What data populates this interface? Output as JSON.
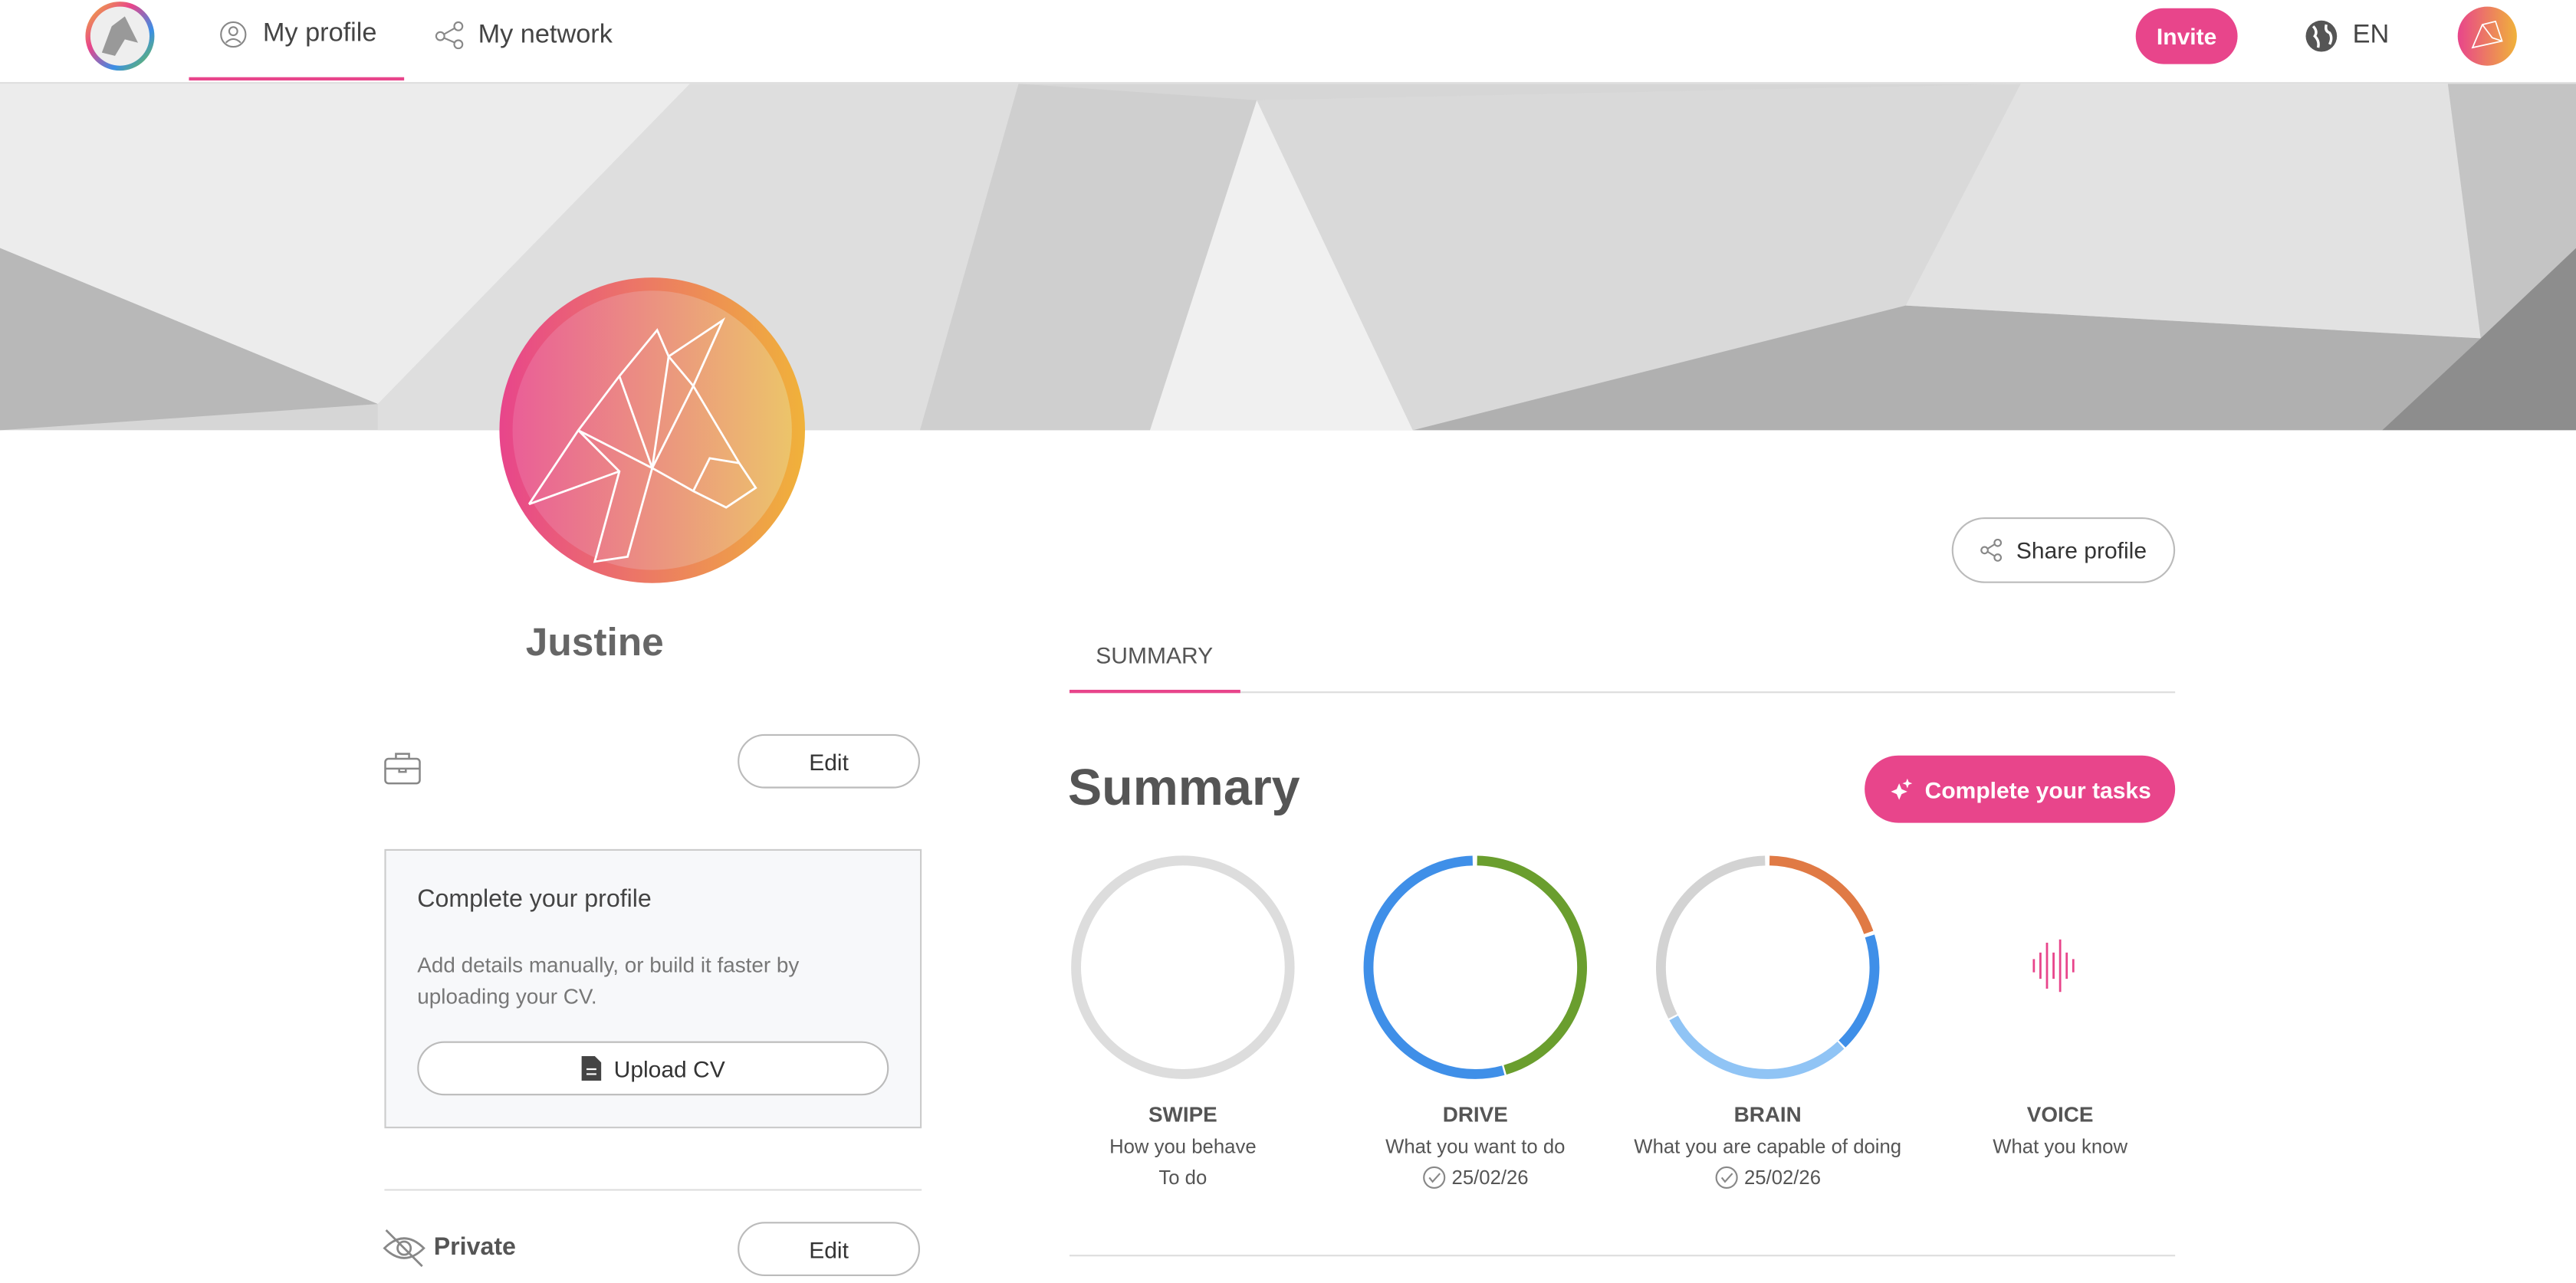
{
  "nav": {
    "items": [
      "My profile",
      "My network"
    ],
    "invite": "Invite",
    "language": "EN"
  },
  "profile": {
    "name": "Justine",
    "edit": "Edit",
    "card": {
      "title": "Complete your profile",
      "description": "Add details manually, or build it faster by uploading your CV.",
      "upload": "Upload CV"
    },
    "private": {
      "label": "Private",
      "edit": "Edit"
    }
  },
  "share": "Share profile",
  "tabs": [
    "SUMMARY"
  ],
  "summary": {
    "title": "Summary",
    "cta": "Complete your tasks",
    "metrics": [
      {
        "name": "SWIPE",
        "description": "How you behave",
        "detail": "To do"
      },
      {
        "name": "DRIVE",
        "description": "What you want to do",
        "detail": "25/02/26"
      },
      {
        "name": "BRAIN",
        "description": "What you are capable of doing",
        "detail": "25/02/26"
      },
      {
        "name": "VOICE",
        "description": "What you know"
      }
    ]
  }
}
